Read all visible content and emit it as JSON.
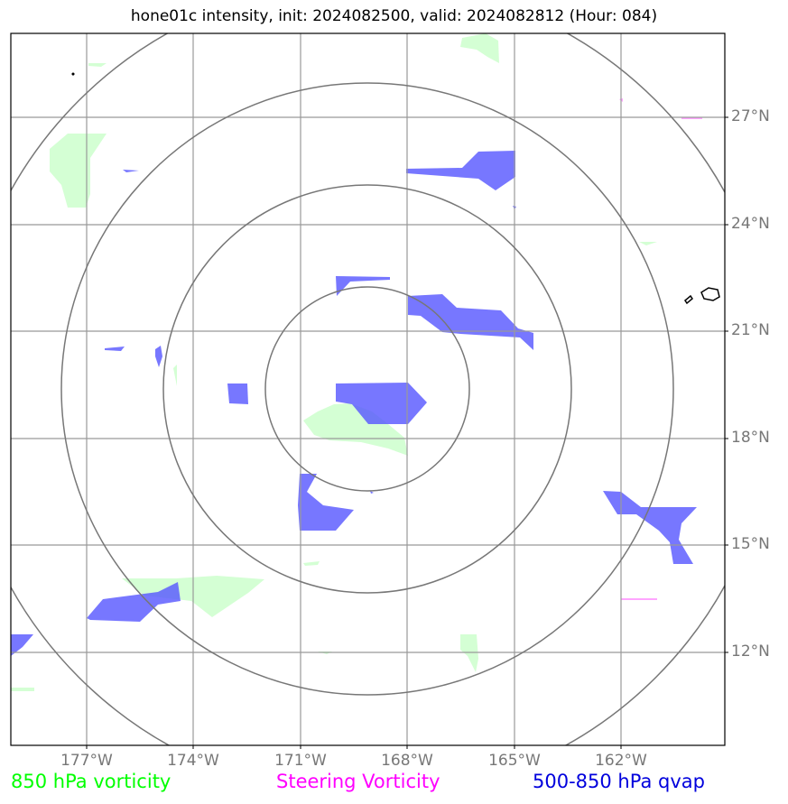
{
  "title": "hone01c intensity, init: 2024082500, valid: 2024082812 (Hour: 084)",
  "map": {
    "lat_labels": [
      "27°N",
      "24°N",
      "21°N",
      "18°N",
      "15°N",
      "12°N"
    ],
    "lon_labels": [
      "177°W",
      "174°W",
      "171°W",
      "168°W",
      "165°W",
      "162°W"
    ],
    "range_rings": 4
  },
  "legend": {
    "item1": "850 hPa vorticity",
    "item2": "Steering Vorticity",
    "item3": "500-850 hPa qvap"
  },
  "colors": {
    "vorticity_850": "#ccffcc",
    "steering_vorticity": "#ff00ff",
    "qvap": "#7070ff",
    "grid": "#999999",
    "ring": "#777777"
  }
}
